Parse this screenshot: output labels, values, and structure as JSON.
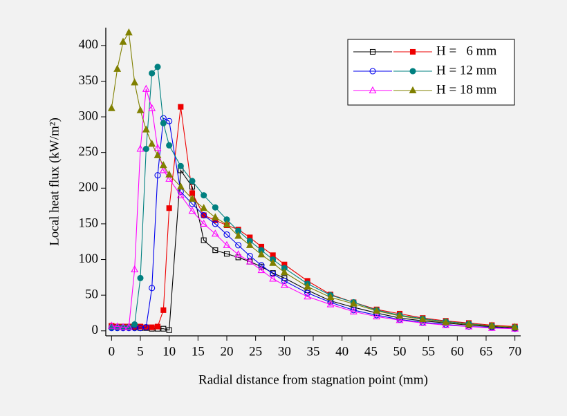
{
  "chart_data": {
    "type": "line",
    "x_label": "Radial distance from stagnation point (mm)",
    "y_label": "Local heat flux (kW/m²)",
    "x": [
      0,
      1,
      2,
      3,
      4,
      5,
      6,
      7,
      8,
      9,
      10,
      12,
      14,
      16,
      18,
      20,
      22,
      24,
      26,
      28,
      30,
      34,
      38,
      42,
      46,
      50,
      54,
      58,
      62,
      66,
      70
    ],
    "series": [
      {
        "color": "#000000",
        "marker": "square",
        "filled": false,
        "values": [
          7,
          6,
          6,
          6,
          5,
          4,
          4,
          3,
          3,
          3,
          1,
          225,
          202,
          127,
          113,
          108,
          103,
          97,
          90,
          81,
          74,
          57,
          42,
          33,
          25,
          18,
          14,
          11,
          8,
          6,
          4
        ]
      },
      {
        "name": "H =   6 mm",
        "color": "#ee0000",
        "marker": "square",
        "filled": true,
        "values": [
          7,
          6,
          6,
          6,
          6,
          6,
          5,
          5,
          6,
          29,
          172,
          314,
          193,
          162,
          155,
          148,
          142,
          131,
          118,
          106,
          93,
          70,
          51,
          40,
          30,
          24,
          18,
          14,
          11,
          8,
          6
        ]
      },
      {
        "color": "#0000ee",
        "marker": "circle",
        "filled": false,
        "values": [
          4,
          4,
          4,
          4,
          4,
          4,
          5,
          60,
          218,
          298,
          294,
          195,
          178,
          162,
          150,
          135,
          120,
          105,
          92,
          80,
          70,
          53,
          40,
          29,
          22,
          16,
          12,
          9,
          6,
          5,
          3
        ]
      },
      {
        "name": "H = 12 mm",
        "color": "#008080",
        "marker": "circle",
        "filled": true,
        "values": [
          5,
          5,
          5,
          5,
          9,
          74,
          255,
          361,
          370,
          291,
          260,
          231,
          210,
          190,
          173,
          156,
          140,
          126,
          113,
          100,
          88,
          66,
          50,
          40,
          29,
          22,
          17,
          13,
          10,
          7,
          5
        ]
      },
      {
        "color": "#ff00ff",
        "marker": "triangle",
        "filled": false,
        "values": [
          7,
          6,
          5,
          5,
          86,
          255,
          339,
          312,
          256,
          225,
          213,
          190,
          168,
          150,
          136,
          120,
          107,
          97,
          85,
          73,
          64,
          48,
          37,
          27,
          20,
          15,
          11,
          8,
          6,
          4,
          3
        ]
      },
      {
        "name": "H = 18 mm",
        "color": "#808000",
        "marker": "triangle",
        "filled": true,
        "values": [
          312,
          367,
          405,
          418,
          348,
          309,
          282,
          262,
          246,
          232,
          219,
          202,
          185,
          172,
          159,
          149,
          133,
          120,
          107,
          95,
          82,
          62,
          47,
          38,
          28,
          21,
          16,
          12,
          9,
          7,
          5
        ]
      }
    ],
    "xlim": [
      -1,
      71
    ],
    "xticks": [
      0,
      5,
      10,
      15,
      20,
      25,
      30,
      35,
      40,
      45,
      50,
      55,
      60,
      65,
      70
    ],
    "ylim": [
      -7,
      425
    ],
    "yticks": [
      0,
      50,
      100,
      150,
      200,
      250,
      300,
      350,
      400
    ],
    "legend": "upper right"
  }
}
